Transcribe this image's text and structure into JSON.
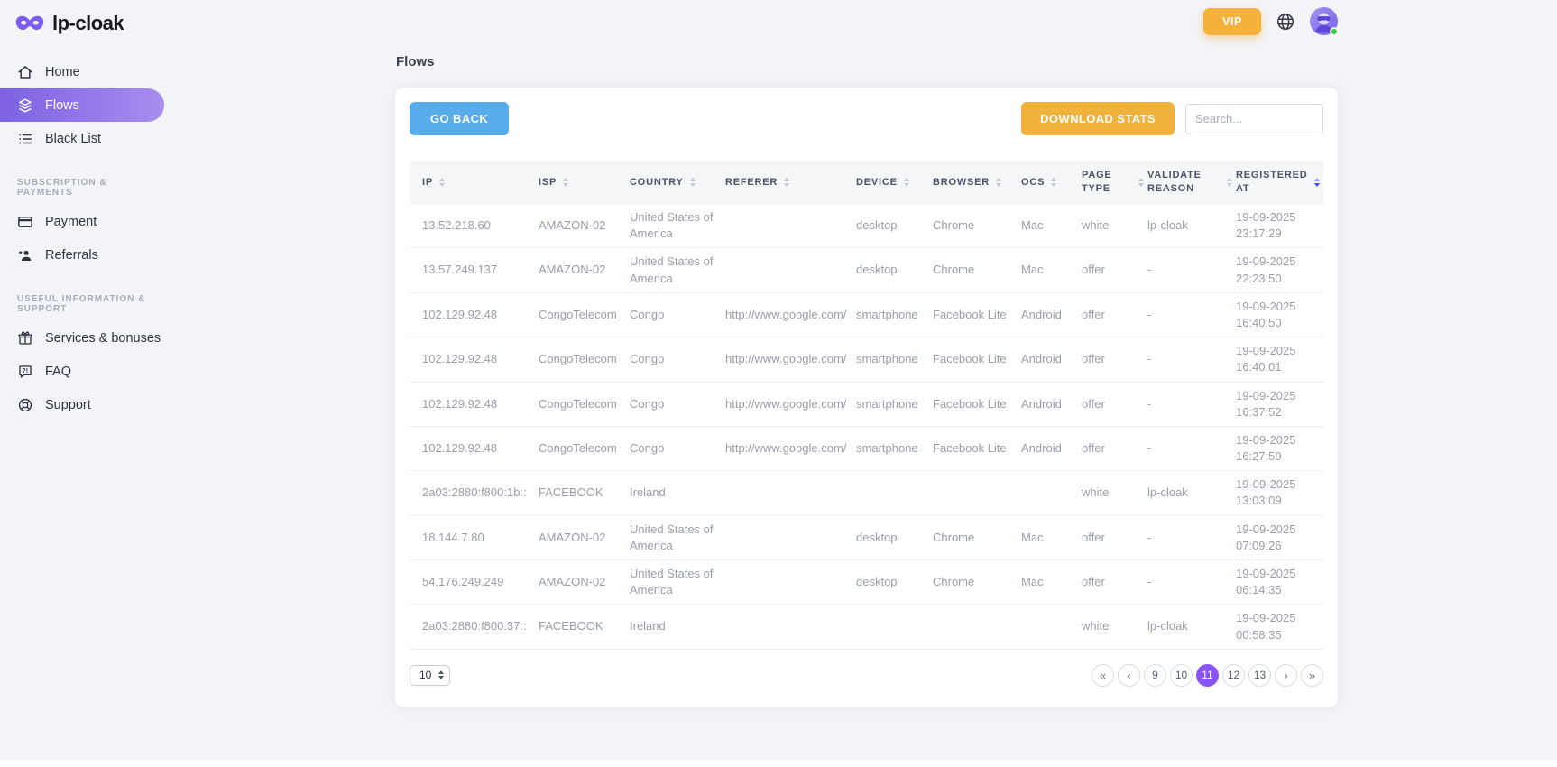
{
  "brand": {
    "name": "lp-cloak"
  },
  "header": {
    "vip_label": "VIP"
  },
  "sidebar": {
    "sections": [
      {
        "title": "",
        "items": [
          {
            "icon": "home-icon",
            "label": "Home",
            "active": false
          },
          {
            "icon": "flows-icon",
            "label": "Flows",
            "active": true
          },
          {
            "icon": "blacklist-icon",
            "label": "Black List",
            "active": false
          }
        ]
      },
      {
        "title": "SUBSCRIPTION & PAYMENTS",
        "items": [
          {
            "icon": "payment-icon",
            "label": "Payment",
            "active": false
          },
          {
            "icon": "referrals-icon",
            "label": "Referrals",
            "active": false
          }
        ]
      },
      {
        "title": "USEFUL INFORMATION & SUPPORT",
        "items": [
          {
            "icon": "services-icon",
            "label": "Services & bonuses",
            "active": false
          },
          {
            "icon": "faq-icon",
            "label": "FAQ",
            "active": false
          },
          {
            "icon": "support-icon",
            "label": "Support",
            "active": false
          }
        ]
      }
    ]
  },
  "page": {
    "title": "Flows"
  },
  "toolbar": {
    "go_back_label": "GO BACK",
    "download_stats_label": "DOWNLOAD STATS",
    "search_placeholder": "Search...",
    "search_value": ""
  },
  "table": {
    "columns": [
      "IP",
      "ISP",
      "COUNTRY",
      "REFERER",
      "DEVICE",
      "BROWSER",
      "OCS",
      "PAGE TYPE",
      "VALIDATE REASON",
      "REGISTERED AT"
    ],
    "sorted_column": "REGISTERED AT",
    "rows": [
      [
        "13.52.218.60",
        "AMAZON-02",
        "United States of America",
        "",
        "desktop",
        "Chrome",
        "Mac",
        "white",
        "lp-cloak",
        "19-09-2025 23:17:29"
      ],
      [
        "13.57.249.137",
        "AMAZON-02",
        "United States of America",
        "",
        "desktop",
        "Chrome",
        "Mac",
        "offer",
        "-",
        "19-09-2025 22:23:50"
      ],
      [
        "102.129.92.48",
        "CongoTelecom",
        "Congo",
        "http://www.google.com/",
        "smartphone",
        "Facebook Lite",
        "Android",
        "offer",
        "-",
        "19-09-2025 16:40:50"
      ],
      [
        "102.129.92.48",
        "CongoTelecom",
        "Congo",
        "http://www.google.com/",
        "smartphone",
        "Facebook Lite",
        "Android",
        "offer",
        "-",
        "19-09-2025 16:40:01"
      ],
      [
        "102.129.92.48",
        "CongoTelecom",
        "Congo",
        "http://www.google.com/",
        "smartphone",
        "Facebook Lite",
        "Android",
        "offer",
        "-",
        "19-09-2025 16:37:52"
      ],
      [
        "102.129.92.48",
        "CongoTelecom",
        "Congo",
        "http://www.google.com/",
        "smartphone",
        "Facebook Lite",
        "Android",
        "offer",
        "-",
        "19-09-2025 16:27:59"
      ],
      [
        "2a03:2880:f800:1b::",
        "FACEBOOK",
        "Ireland",
        "",
        "",
        "",
        "",
        "white",
        "lp-cloak",
        "19-09-2025 13:03:09"
      ],
      [
        "18.144.7.80",
        "AMAZON-02",
        "United States of America",
        "",
        "desktop",
        "Chrome",
        "Mac",
        "offer",
        "-",
        "19-09-2025 07:09:26"
      ],
      [
        "54.176.249.249",
        "AMAZON-02",
        "United States of America",
        "",
        "desktop",
        "Chrome",
        "Mac",
        "offer",
        "-",
        "19-09-2025 06:14:35"
      ],
      [
        "2a03:2880:f800:37::",
        "FACEBOOK",
        "Ireland",
        "",
        "",
        "",
        "",
        "white",
        "lp-cloak",
        "19-09-2025 00:58:35"
      ]
    ]
  },
  "pagination": {
    "per_page": "10",
    "pages": [
      "9",
      "10",
      "11",
      "12",
      "13"
    ],
    "active_page": "11",
    "controls": {
      "first": "«",
      "prev": "‹",
      "next": "›",
      "last": "»"
    }
  },
  "colors": {
    "accent_purple": "#8a5cf0",
    "sidebar_active_gradient_start": "#7d62e2",
    "sidebar_active_gradient_end": "#a78df0",
    "vip_orange": "#f4b13c",
    "go_back_blue": "#57acec",
    "download_amber": "#f0b23d",
    "active_page_purple": "#8955f2",
    "online_green": "#34c940"
  }
}
